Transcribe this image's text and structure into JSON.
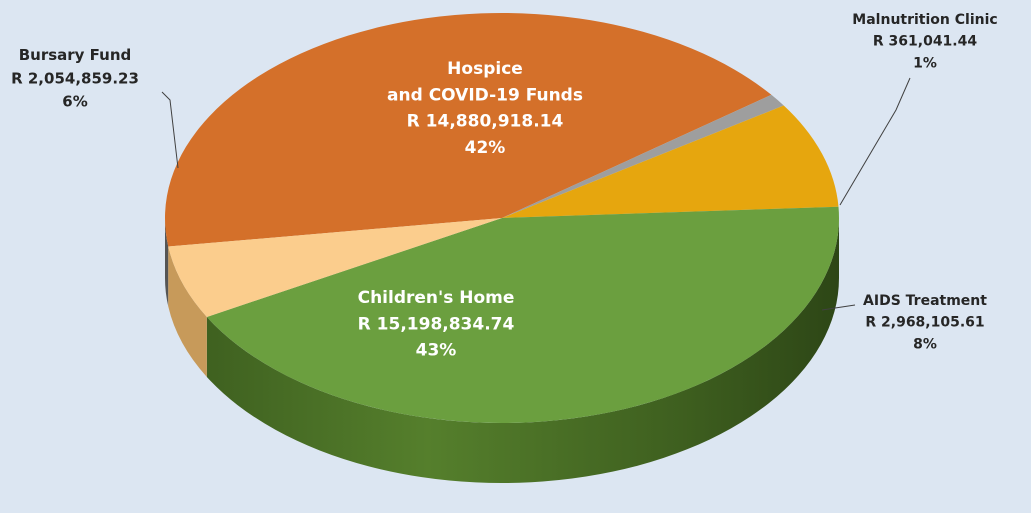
{
  "chart_data": {
    "type": "pie",
    "title": "",
    "currency": "R",
    "slices": [
      {
        "name": "Hospice",
        "name_line2": "and COVID-19 Funds",
        "value": "R 14,880,918.14",
        "amount": 14880918.14,
        "percent": "42%",
        "color": "#d4702a",
        "label_color": "#ffffff"
      },
      {
        "name": "Malnutrition Clinic",
        "value": "R 361,041.44",
        "amount": 361041.44,
        "percent": "1%",
        "color": "#9e9e9e",
        "label_color": "#262626"
      },
      {
        "name": "AIDS Treatment",
        "value": "R 2,968,105.61",
        "amount": 2968105.61,
        "percent": "8%",
        "color": "#e6a60e",
        "label_color": "#262626"
      },
      {
        "name": "Children's Home",
        "value": "R 15,198,834.74",
        "amount": 15198834.74,
        "percent": "43%",
        "color": "#6b9f3f",
        "label_color": "#ffffff"
      },
      {
        "name": "Bursary Fund",
        "value": "R 2,054,859.23",
        "amount": 2054859.23,
        "percent": "6%",
        "color": "#fbcd8d",
        "label_color": "#262626"
      }
    ],
    "style": "3d-pie",
    "legend": "none",
    "background": "#dce6f2"
  }
}
